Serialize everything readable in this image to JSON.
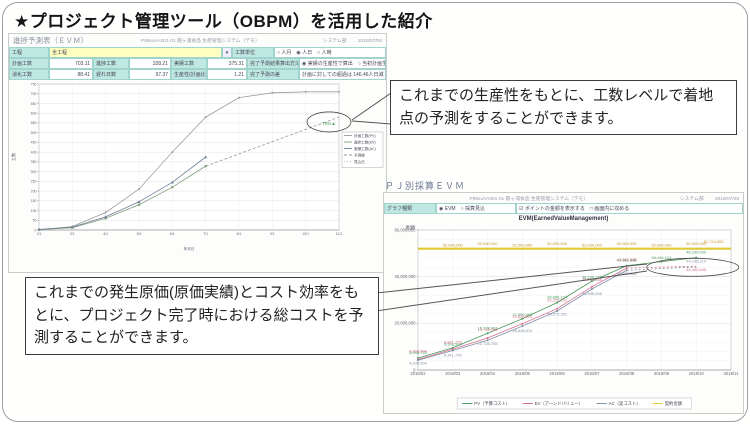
{
  "slide": {
    "title": "★プロジェクト管理ツール（OBPM）を活用した紹介"
  },
  "callouts": {
    "productivity": "これまでの生産性をもとに、工数レベルで着地点の予測をすることができます。",
    "cost": "これまでの発生原価(原価実績)とコスト効率をもとに、プロジェクト完了時における総コストを予測することができます。"
  },
  "evm_forecast": {
    "title": "進捗予測表（ＥＶＭ）",
    "doc_ref": "P99xxAA001-01 霞ヶ浦食品 生産管理システム（デモ）",
    "dept": "システム部",
    "date": "2018/07/08",
    "form": {
      "process_label": "工程",
      "process_value": "全工程",
      "dropdown_glyph": "▾",
      "unit_label": "工数単位",
      "unit_options": "○ 人月　◉ 人日　○ 人時",
      "row2": [
        {
          "label": "計画工数",
          "value": "703.11"
        },
        {
          "label": "進捗工数",
          "value": "328.21"
        },
        {
          "label": "実績工数",
          "value": "375.31"
        },
        {
          "label": "完了予測結果算出方法",
          "value": "◉ 実績の生産性で算出　○ 当初計画生産性で算出"
        }
      ],
      "row3": [
        {
          "label": "消化工数",
          "value": "88.41"
        },
        {
          "label": "遅れ日数",
          "value": "97.37"
        },
        {
          "label": "生産性(計画比)",
          "value": "1.21"
        },
        {
          "label": "完了予測の差",
          "value": "計画に対しての超過は 146.46人日減"
        }
      ]
    }
  },
  "pj_evm": {
    "heading": "ＰＪ別採算ＥＶＭ",
    "doc_ref": "P99xxAA001-01 霞ヶ浦食品 生産管理システム（デモ）",
    "dept": "システム部",
    "date": "2018/07/08",
    "graph_type_label": "グラフ種類",
    "graph_type_options": "◉ EVM　○ 採算見込",
    "display_options": "☑ ポイントの金額を表示する　□ 画面内に収める"
  },
  "chart_data": [
    {
      "type": "line",
      "title": "",
      "categories": [
        "2/1",
        "3/1",
        "4/1",
        "5/1",
        "6/1",
        "7/1",
        "8/1",
        "9/1",
        "10/1",
        "11/1"
      ],
      "xlabel": "年月日",
      "ylabel": "工数",
      "ylim": [
        0,
        750
      ],
      "ytick_step": 50,
      "legend_position": "right",
      "series": [
        {
          "name": "計画工数(PV)",
          "color": "#9e9e9e",
          "marker": "circle",
          "values": [
            0,
            18,
            90,
            210,
            400,
            580,
            680,
            705,
            710,
            710
          ]
        },
        {
          "name": "進捗工数(EV)",
          "color": "#7f9f7f",
          "marker": "square",
          "values": [
            2,
            12,
            60,
            130,
            220,
            328,
            null,
            null,
            null,
            null
          ]
        },
        {
          "name": "実績工数(AC)",
          "color": "#70809a",
          "marker": "triangle",
          "values": [
            3,
            15,
            68,
            145,
            245,
            375,
            null,
            null,
            null,
            null
          ]
        },
        {
          "name": "予測線",
          "color": "#999999",
          "dash": "3 2",
          "values": [
            null,
            null,
            null,
            null,
            null,
            328,
            391,
            454,
            517,
            580
          ]
        },
        {
          "name": "見込日",
          "color": "#bbbbbb",
          "dash": "1 2",
          "values": [
            null,
            null,
            null,
            null,
            null,
            null,
            null,
            null,
            null,
            null
          ]
        }
      ],
      "annotations": [
        {
          "type": "ellipse",
          "x": 8.7,
          "v": 555,
          "rx": 22,
          "ry": 10
        },
        {
          "type": "text",
          "x": 8.7,
          "v": 540,
          "text": "70%▲",
          "color": "#3aa050",
          "size": 4.5
        }
      ]
    },
    {
      "type": "line",
      "title": "EVM(EarnedValueManagement)",
      "categories": [
        "2018/02",
        "2018/03",
        "2018/04",
        "2018/05",
        "2018/06",
        "2018/07",
        "2018/08",
        "2018/09",
        "2018/10",
        "2018/11"
      ],
      "xlabel": "",
      "ylabel": "金額",
      "ylim": [
        0,
        60000000
      ],
      "ytick_step": 20000000,
      "minor_step": 4000000,
      "legend_position": "bottom",
      "series": [
        {
          "name": "PV（予算コスト）",
          "color": "#4a9a5a",
          "marker": "circle",
          "label_dy": -2.5,
          "values": [
            5098725,
            9508504,
            15728667,
            21980482,
            28886124,
            38105119,
            44682888,
            46446124,
            48150000,
            null
          ],
          "point_labels": [
            "5,098,725",
            "9,508,504",
            "15,728,667",
            "21,980,482",
            "28,886,124",
            "38,105,119",
            "44,682,888",
            "46,446,124",
            "48,150,000",
            ""
          ]
        },
        {
          "name": "EV（アーンドバリュー）",
          "color": "#d4708c",
          "marker": "circle",
          "label_dy": -5.5,
          "values": [
            4508504,
            8941726,
            13728785,
            19828814,
            26275251,
            35698536,
            43682888,
            null,
            null,
            null
          ],
          "point_labels": [
            "4,508,504",
            "8,941,726",
            "13,728,785",
            "19,828,814",
            "26,275,251",
            "35,698,536",
            "43,682,888",
            "",
            "",
            ""
          ]
        },
        {
          "name": "AC（実コスト）",
          "color": "#8090a8",
          "marker": "circle",
          "label_dy": 6,
          "values": [
            4208504,
            8341726,
            12728785,
            18828814,
            25275251,
            34698536,
            42682888,
            null,
            null,
            null
          ],
          "point_labels": [
            "4,208,504",
            "8,341,726",
            "12,728,785",
            "18,828,814",
            "25,275,251",
            "34,698,536",
            "42,682,888",
            "",
            "",
            ""
          ]
        },
        {
          "name": "契約金額",
          "color": "#e0c830",
          "width": 2.2,
          "label_dy": -2,
          "label_color": "#c09020",
          "values": [
            52000000,
            52000000,
            52000000,
            52000000,
            52000000,
            52000000,
            52000000,
            52000000,
            52000000,
            52000000
          ],
          "point_labels": [
            "",
            "52,000,000",
            "52,000,000",
            "52,000,000",
            "52,000,000",
            "52,000,000",
            "52,000,000",
            "52,000,000",
            "52,000,000",
            ""
          ]
        },
        {
          "name": "EV予測",
          "color": "#d4708c",
          "dash": "2 2",
          "in_legend": false,
          "label_dy": 6,
          "values": [
            null,
            null,
            null,
            null,
            null,
            null,
            43682888,
            44100000,
            44453645,
            null
          ],
          "point_labels": [
            "",
            "",
            "",
            "",
            "",
            "",
            "",
            "",
            "44,453,645",
            ""
          ]
        },
        {
          "name": "AC予測",
          "color": "#8090a8",
          "dash": "2 2",
          "in_legend": false,
          "label_dy": -3,
          "values": [
            null,
            null,
            null,
            null,
            null,
            null,
            42682888,
            43500000,
            44138119,
            null
          ],
          "point_labels": [
            "",
            "",
            "",
            "",
            "",
            "",
            "",
            "",
            "44,138,119",
            ""
          ]
        }
      ],
      "annotations": [
        {
          "type": "ellipse",
          "x": 7.9,
          "v": 44000000,
          "rx": 46,
          "ry": 9
        },
        {
          "type": "text",
          "x": 8.5,
          "v": 54500000,
          "text": "51,724,000",
          "color": "#c09020",
          "size": 4
        }
      ]
    }
  ]
}
